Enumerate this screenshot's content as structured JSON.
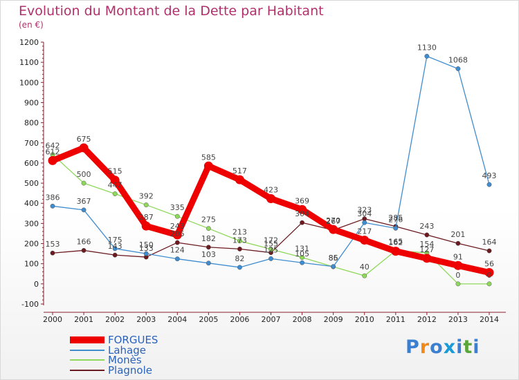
{
  "header": {
    "title": "Evolution du Montant de la Dette par Habitant",
    "subtitle": "(en €)"
  },
  "brand": {
    "name": "Proxiti",
    "letters": [
      "P",
      "r",
      "o",
      "x",
      "i",
      "t",
      "i"
    ],
    "letter_colors": [
      "#3a7fd0",
      "#f08a1c",
      "#3a7fd0",
      "#1a9bd7",
      "#3a7fd0",
      "#5aa63a",
      "#3a7fd0"
    ]
  },
  "chart_data": {
    "type": "line",
    "title": "Evolution du Montant de la Dette par Habitant",
    "subtitle": "(en €)",
    "xlabel": "",
    "ylabel": "",
    "x": [
      "2000",
      "2001",
      "2002",
      "2003",
      "2004",
      "2005",
      "2006",
      "2007",
      "2008",
      "2009",
      "2010",
      "2011",
      "2012",
      "2013",
      "2014"
    ],
    "ylim": [
      -100,
      1200
    ],
    "yticks": [
      -100,
      0,
      100,
      200,
      300,
      400,
      500,
      600,
      700,
      800,
      900,
      1000,
      1100,
      1200
    ],
    "grid": false,
    "legend_position": "bottom-left",
    "series": [
      {
        "name": "Plagnole",
        "color": "#6b1a20",
        "values": [
          153,
          166,
          143,
          133,
          205,
          182,
          173,
          155,
          304,
          267,
          323,
          285,
          243,
          201,
          164
        ]
      },
      {
        "name": "Monès",
        "color": "#8ed85a",
        "values": [
          642,
          500,
          447,
          392,
          335,
          275,
          213,
          172,
          131,
          85,
          40,
          165,
          154,
          0,
          0
        ]
      },
      {
        "name": "Lahage",
        "color": "#3f8ccf",
        "values": [
          386,
          367,
          175,
          150,
          124,
          103,
          82,
          125,
          105,
          86,
          304,
          276,
          1130,
          1068,
          493
        ]
      },
      {
        "name": "FORGUES",
        "color": "#ee0000",
        "values": [
          612,
          675,
          515,
          287,
          243,
          585,
          517,
          423,
          369,
          270,
          217,
          162,
          127,
          91,
          56
        ]
      }
    ],
    "legend": [
      "FORGUES",
      "Lahage",
      "Monès",
      "Plagnole"
    ]
  }
}
